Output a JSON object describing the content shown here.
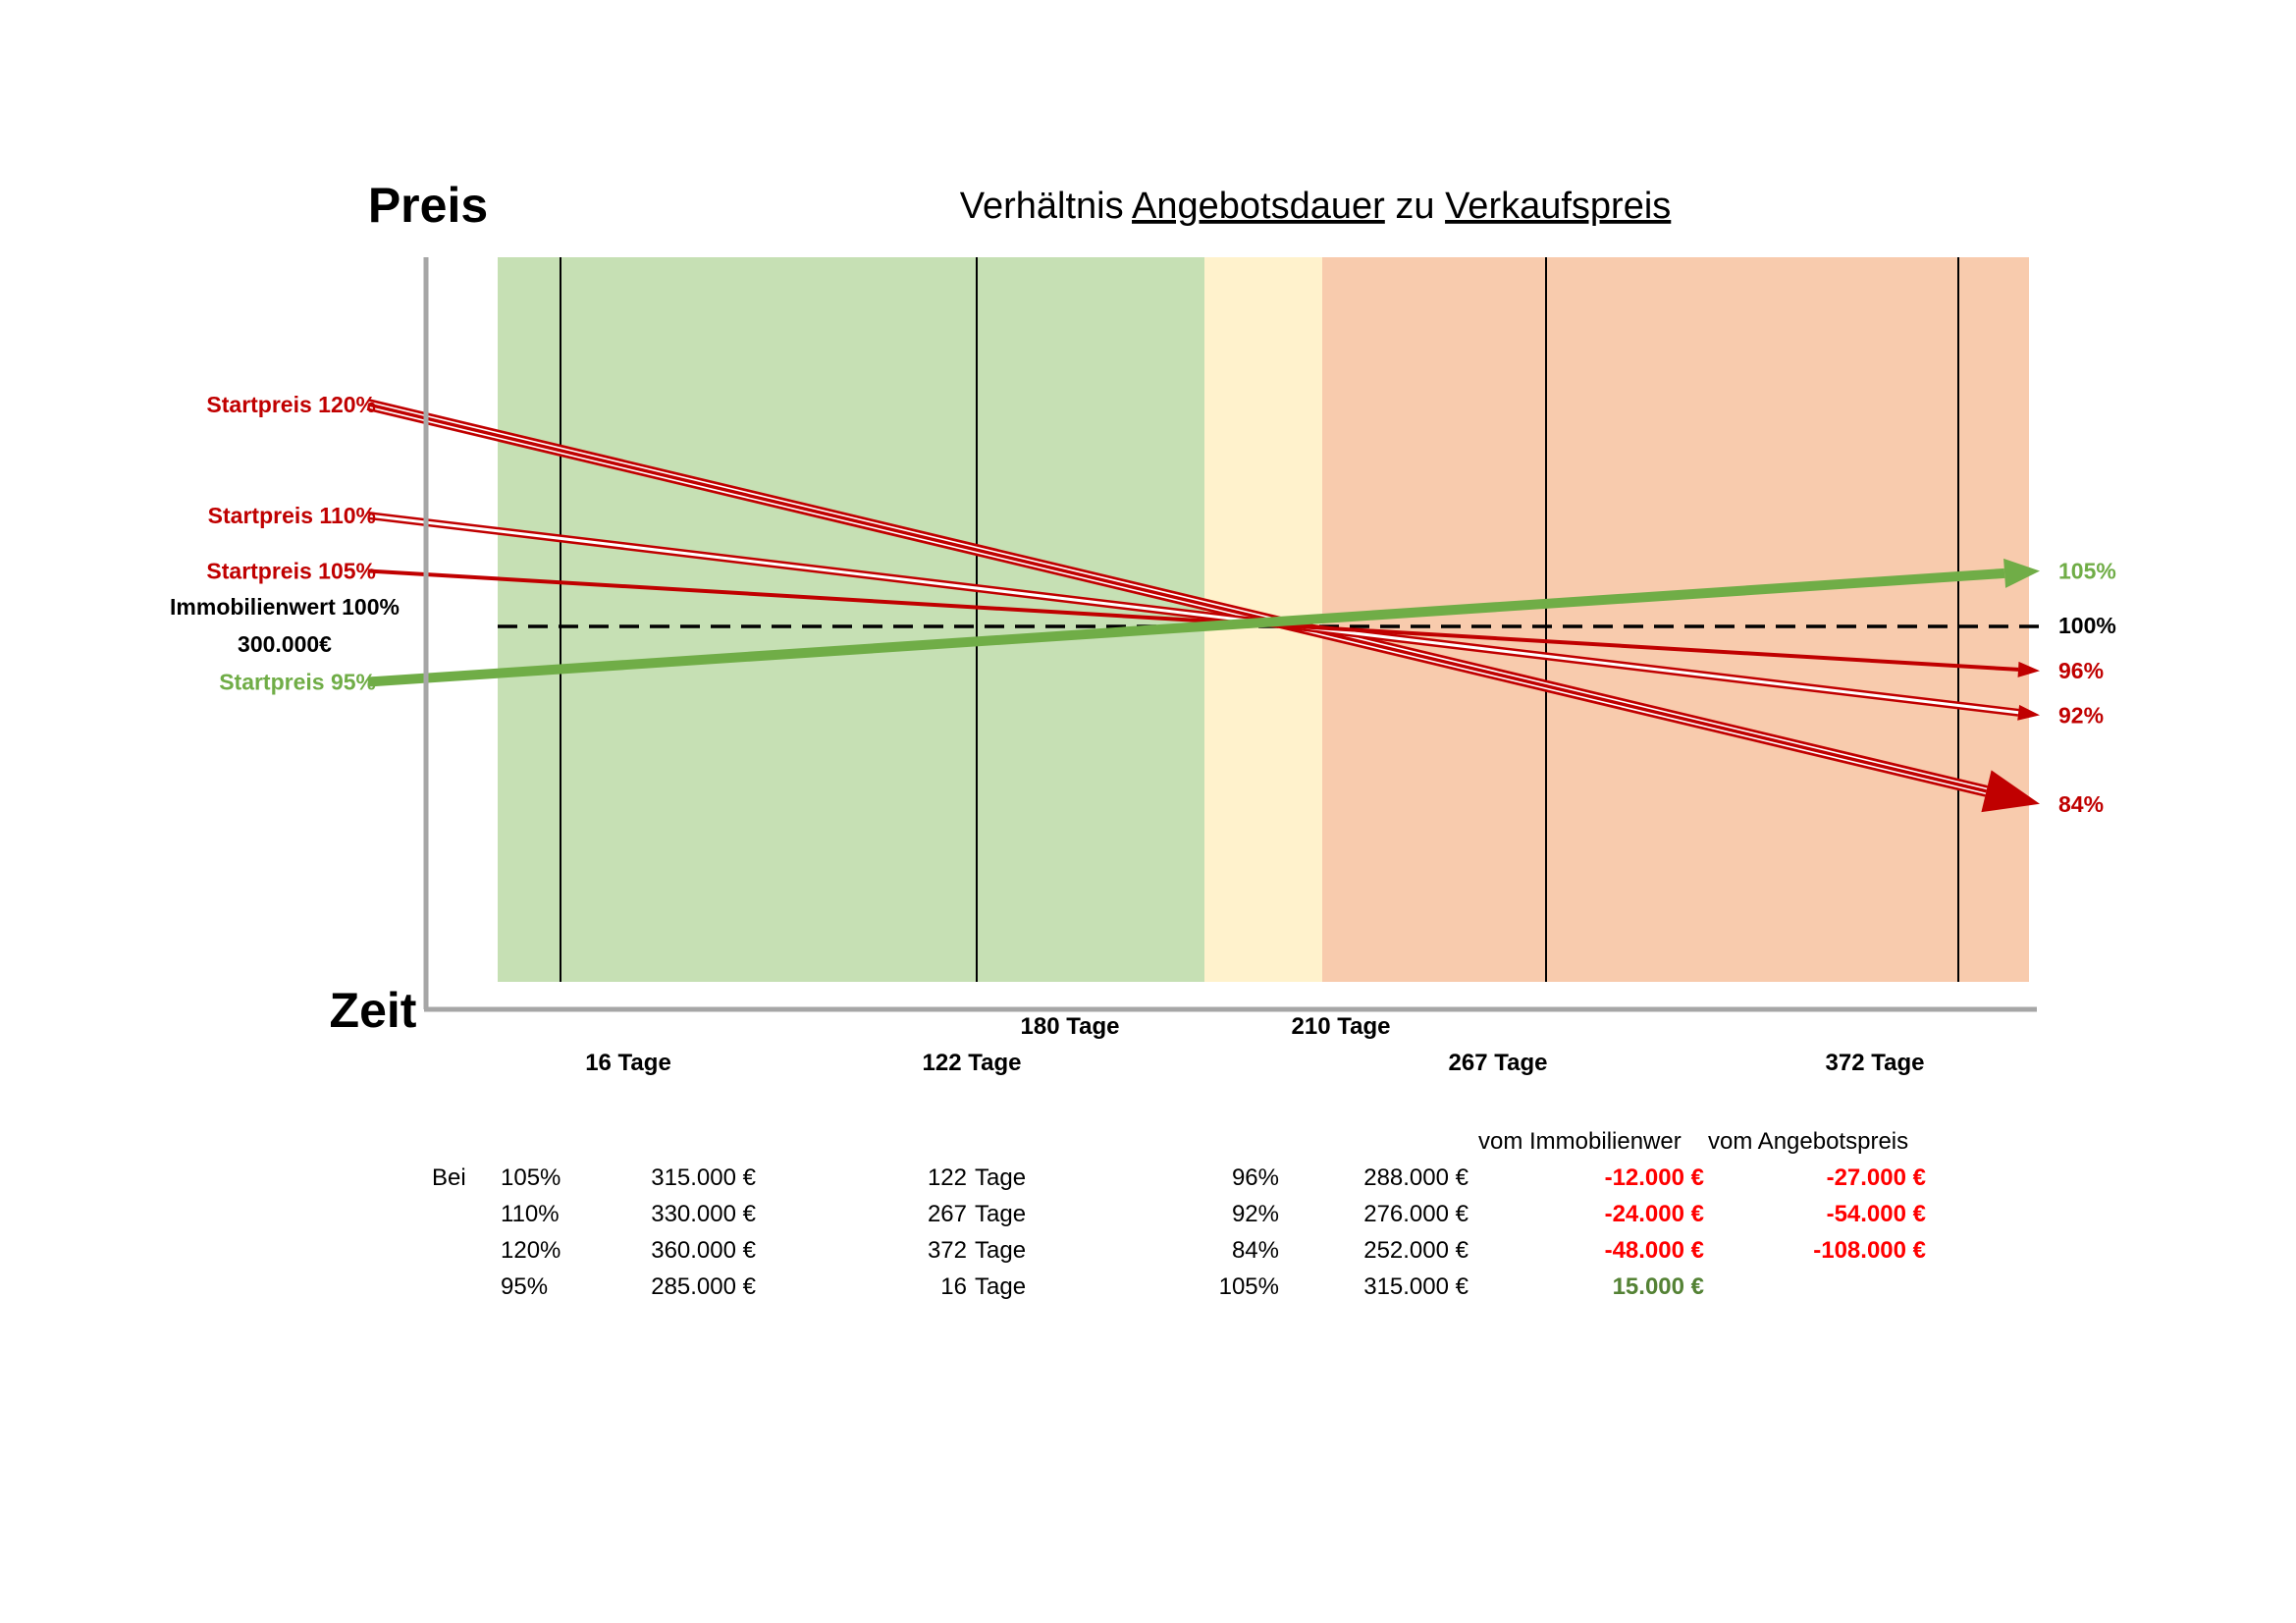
{
  "chart_data": {
    "type": "line",
    "title": {
      "prefix": "Verhältnis ",
      "word1": "Angebotsdauer",
      "middle": " zu ",
      "word2": "Verkaufspreis"
    },
    "ylabel": "Preis",
    "xlabel": "Zeit",
    "zones": [
      {
        "from": 0,
        "to": 180,
        "color": "#c6e0b4"
      },
      {
        "from": 180,
        "to": 210,
        "color": "#fff2cc"
      },
      {
        "from": 210,
        "to": 390,
        "color": "#f8cbad"
      }
    ],
    "reference": {
      "value": 100,
      "label": "100%",
      "left_label": [
        "Immobilienwert 100%",
        "300.000€"
      ]
    },
    "series": [
      {
        "name": "Startpreis 120%",
        "start": 120,
        "end": 84,
        "end_label": "84%",
        "color": "#c00000",
        "style": "triple",
        "arrow": "large"
      },
      {
        "name": "Startpreis 110%",
        "start": 110,
        "end": 92,
        "end_label": "92%",
        "color": "#c00000",
        "style": "double",
        "arrow": "small"
      },
      {
        "name": "Startpreis 105%",
        "start": 105,
        "end": 96,
        "end_label": "96%",
        "color": "#c00000",
        "style": "single",
        "arrow": "small"
      },
      {
        "name": "Startpreis 95%",
        "start": 95,
        "end": 105,
        "end_label": "105%",
        "color": "#70ad47",
        "style": "thick",
        "arrow": "medium"
      }
    ],
    "vertical_markers": [
      16,
      122,
      267,
      372
    ],
    "x_tick_labels": [
      {
        "day": 16,
        "label": "16 Tage",
        "row": 2
      },
      {
        "day": 122,
        "label": "122 Tage",
        "row": 2
      },
      {
        "day": 180,
        "label": "180 Tage",
        "row": 1
      },
      {
        "day": 210,
        "label": "210 Tage",
        "row": 1
      },
      {
        "day": 267,
        "label": "267 Tage",
        "row": 2
      },
      {
        "day": 372,
        "label": "372 Tage",
        "row": 2
      }
    ]
  },
  "table": {
    "header_left": "vom Immobilienwer",
    "header_right": "vom Angebotspreis",
    "prefix": "Bei",
    "rows": [
      {
        "pct": "105%",
        "price": "315.000 €",
        "days": "122",
        "unit": "Tage",
        "result_pct": "96%",
        "result_price": "288.000 €",
        "diff_value": "-12.000 €",
        "diff_offer": "-27.000 €",
        "type": "neg"
      },
      {
        "pct": "110%",
        "price": "330.000 €",
        "days": "267",
        "unit": "Tage",
        "result_pct": "92%",
        "result_price": "276.000 €",
        "diff_value": "-24.000 €",
        "diff_offer": "-54.000 €",
        "type": "neg"
      },
      {
        "pct": "120%",
        "price": "360.000 €",
        "days": "372",
        "unit": "Tage",
        "result_pct": "84%",
        "result_price": "252.000 €",
        "diff_value": "-48.000 €",
        "diff_offer": "-108.000 €",
        "type": "neg"
      },
      {
        "pct": "95%",
        "price": "285.000 €",
        "days": "16",
        "unit": "Tage",
        "result_pct": "105%",
        "result_price": "315.000 €",
        "diff_value": "15.000 €",
        "diff_offer": "",
        "type": "pos"
      }
    ]
  },
  "colors": {
    "red": "#c00000",
    "table_red": "#ff0000",
    "green": "#548235",
    "axis": "#a6a6a6"
  }
}
